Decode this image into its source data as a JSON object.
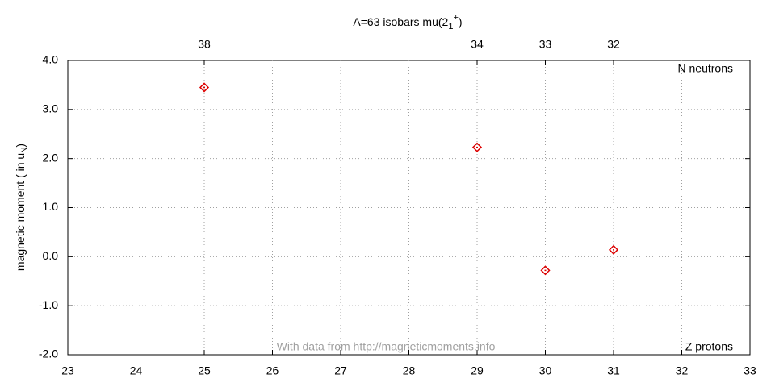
{
  "chart_data": {
    "type": "scatter",
    "title": "A=63 isobars mu(2",
    "title_subscript": "1",
    "title_superscript": "+",
    "title_end": ")",
    "y_label": "magnetic moment ( in u",
    "y_label_subscript": "N",
    "y_label_end": ")",
    "x_label": "Z protons",
    "x2_label": "N neutrons",
    "annotation": "With data from http://magneticmoments.info",
    "series": [
      {
        "name": "mu(2 1+)",
        "color": "#dd0000",
        "x": [
          25,
          29,
          30,
          31
        ],
        "values": [
          3.45,
          2.23,
          -0.28,
          0.14
        ]
      }
    ],
    "xlim": [
      23,
      33
    ],
    "xticks": [
      23,
      24,
      25,
      26,
      27,
      28,
      29,
      30,
      31,
      32,
      33
    ],
    "x2ticks": [
      {
        "value": 25,
        "label": "38"
      },
      {
        "value": 29,
        "label": "34"
      },
      {
        "value": 30,
        "label": "33"
      },
      {
        "value": 31,
        "label": "32"
      }
    ],
    "ylim": [
      -2,
      4
    ],
    "yticks": [
      {
        "value": -2,
        "label": "-2.0"
      },
      {
        "value": -1,
        "label": "-1.0"
      },
      {
        "value": 0,
        "label": "0.0"
      },
      {
        "value": 1,
        "label": "1.0"
      },
      {
        "value": 2,
        "label": "2.0"
      },
      {
        "value": 3,
        "label": "3.0"
      },
      {
        "value": 4,
        "label": "4.0"
      }
    ],
    "grid": true
  }
}
